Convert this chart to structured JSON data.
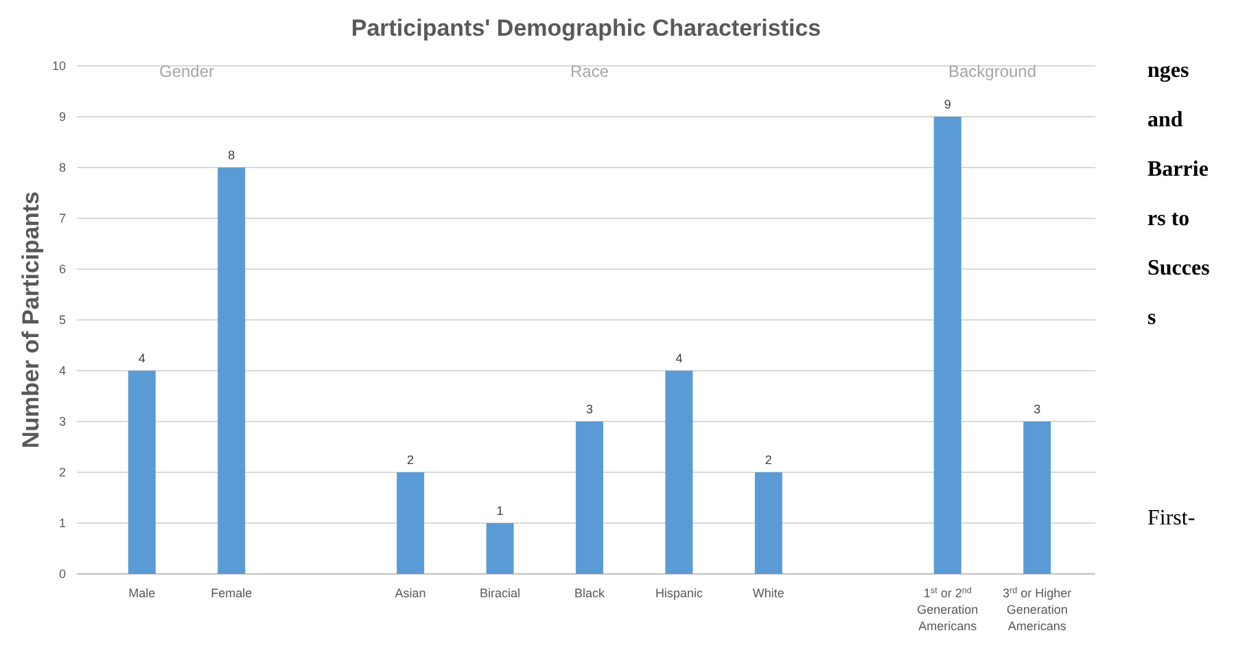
{
  "chart_data": {
    "type": "bar",
    "title": "Participants' Demographic Characteristics",
    "ylabel": "Number of Participants",
    "categories": [
      "Male",
      "Female",
      null,
      "Asian",
      "Biracial",
      "Black",
      "Hispanic",
      "White",
      null,
      "1$^{st}$ or 2$^{nd}$ Generation Americans",
      "3$^{rd}$ or Higher Generation Americans"
    ],
    "values": [
      4,
      8,
      null,
      2,
      1,
      3,
      4,
      2,
      null,
      9,
      3
    ],
    "color": "#5b9bd5",
    "ylim": [
      0,
      10
    ],
    "yticks": [
      0,
      1,
      2,
      3,
      4,
      5,
      6,
      7,
      8,
      9,
      10
    ],
    "grid": "y",
    "data_labels": true,
    "annotations": [
      "Gender",
      "Race",
      "Background",
      "nges and Barriers to Success",
      "First-"
    ]
  }
}
